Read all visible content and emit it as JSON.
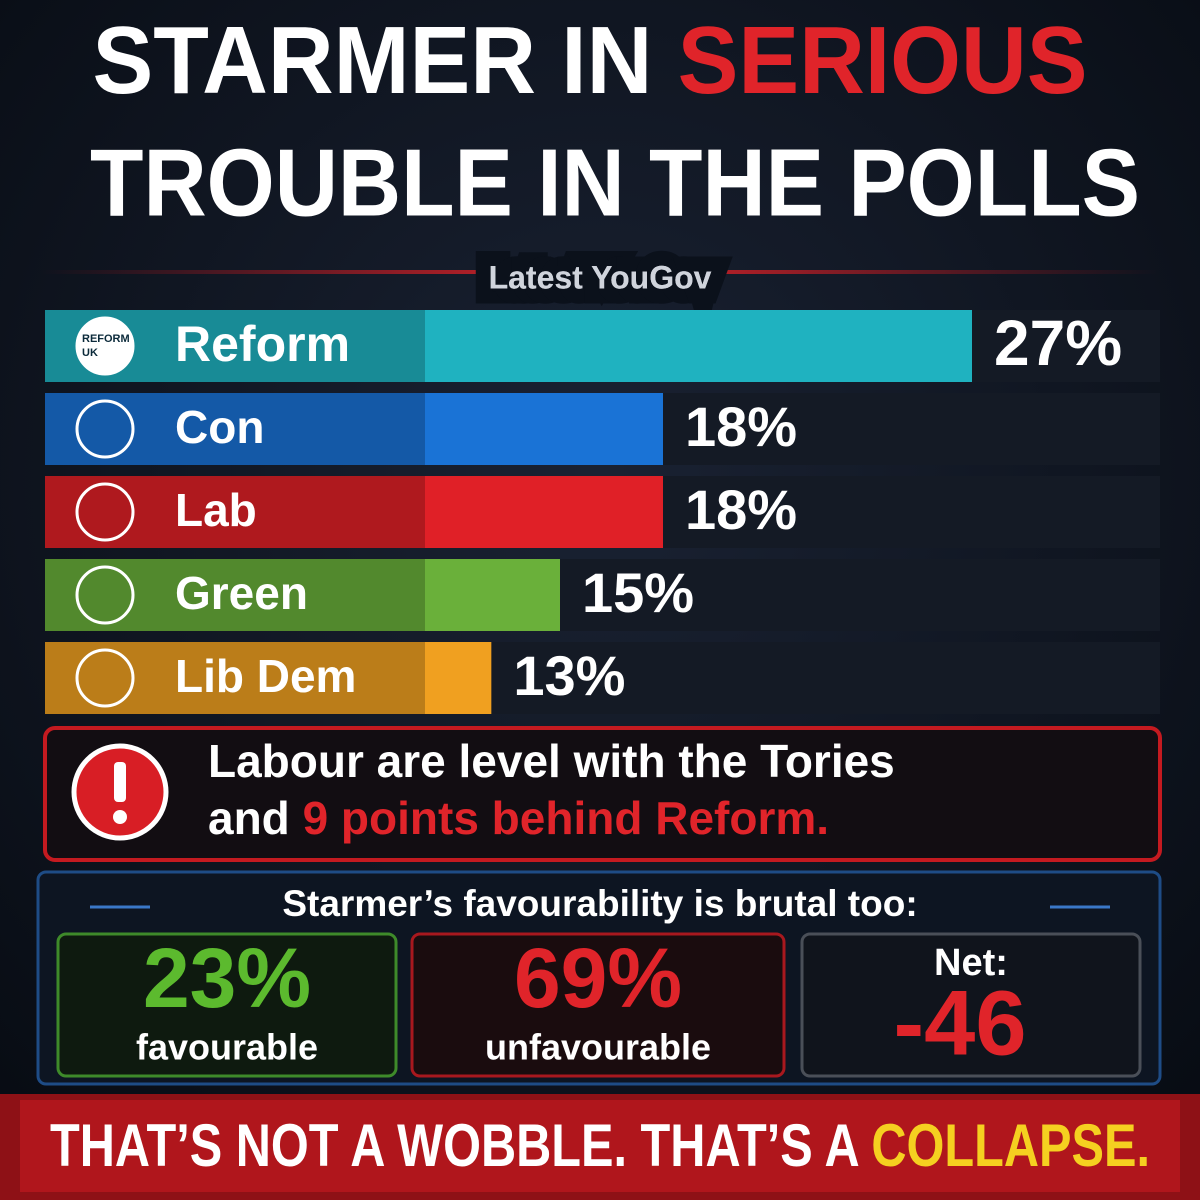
{
  "header": {
    "title_parts": [
      "STARMER IN ",
      "SERIOUS",
      "TROUBLE IN THE POLLS"
    ]
  },
  "chart_data": {
    "type": "bar",
    "subtitle": "Latest YouGov",
    "categories": [
      "Reform",
      "Con",
      "Lab",
      "Green",
      "Lib Dem"
    ],
    "values": [
      27,
      18,
      18,
      15,
      13
    ],
    "value_labels": [
      "27%",
      "18%",
      "18%",
      "15%",
      "13%"
    ],
    "colors": [
      "#1fb2c0",
      "#1a73d6",
      "#e02027",
      "#6ab03a",
      "#f0a020"
    ],
    "logo_text": [
      "REFORM",
      "UK"
    ]
  },
  "callout": {
    "line1": "Labour are level with the Tories",
    "line2_start": "and ",
    "line2_highlight": "9 points behind Reform."
  },
  "favourability": {
    "heading": "Starmer’s favourability is brutal too:",
    "items": [
      {
        "value": "23%",
        "caption": "favourable"
      },
      {
        "value": "69%",
        "caption": "unfavourable"
      },
      {
        "caption": "Net:",
        "value": "-46"
      }
    ]
  },
  "footer": {
    "text": "THAT’S NOT A WOBBLE. THAT’S A ",
    "highlight": "COLLAPSE."
  }
}
